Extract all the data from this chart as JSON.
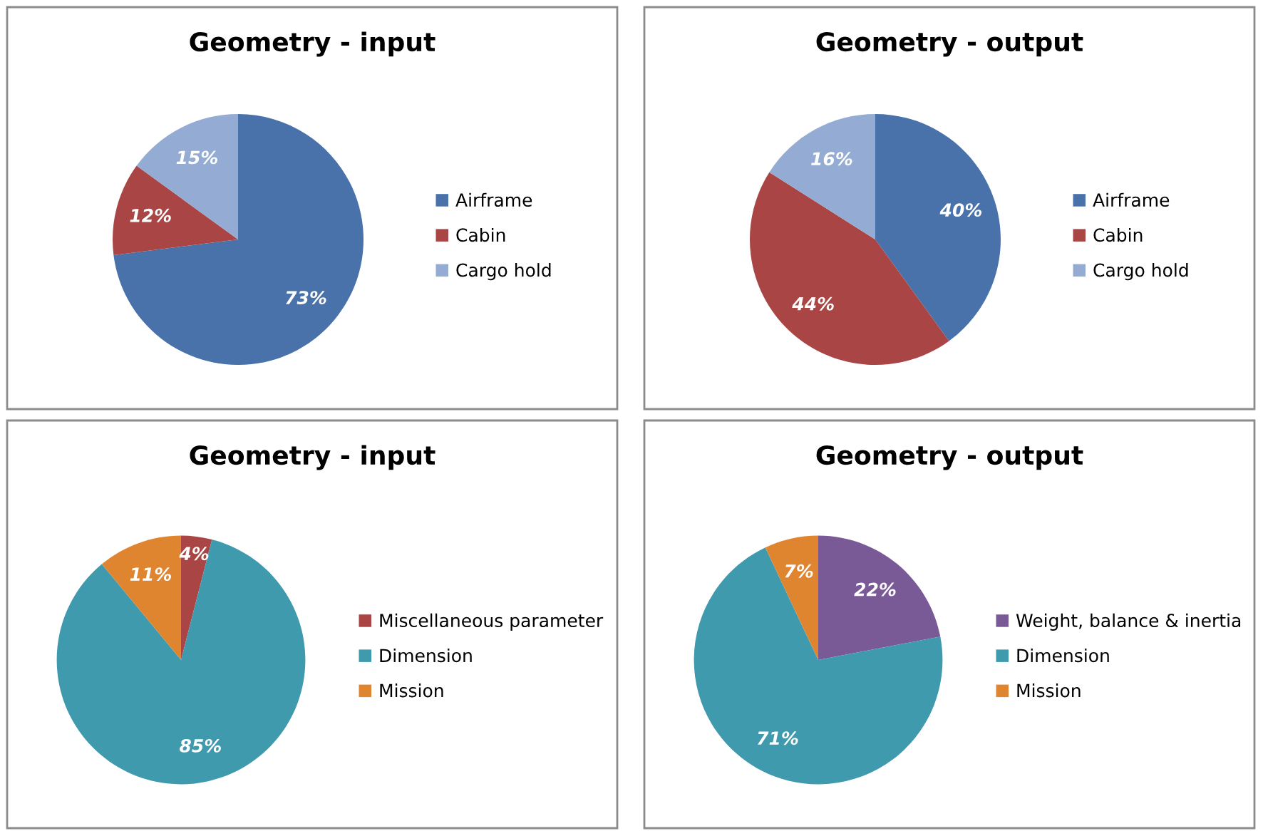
{
  "chart_data": [
    {
      "type": "pie",
      "title": "Geometry - input",
      "categories": [
        "Airframe",
        "Cabin",
        "Cargo hold"
      ],
      "values": [
        73,
        12,
        15
      ],
      "colors": [
        "#4a72aa",
        "#a94544",
        "#94abd3"
      ],
      "value_labels": [
        "73%",
        "12%",
        "15%"
      ],
      "legend": "right"
    },
    {
      "type": "pie",
      "title": "Geometry - output",
      "categories": [
        "Airframe",
        "Cabin",
        "Cargo hold"
      ],
      "values": [
        40,
        44,
        16
      ],
      "colors": [
        "#4a72aa",
        "#a94544",
        "#94abd3"
      ],
      "value_labels": [
        "40%",
        "44%",
        "16%"
      ],
      "legend": "right"
    },
    {
      "type": "pie",
      "title": "Geometry - input",
      "categories": [
        "Miscellaneous parameter",
        "Dimension",
        "Mission"
      ],
      "values": [
        4,
        85,
        11
      ],
      "colors": [
        "#a94544",
        "#3f9aae",
        "#df8530"
      ],
      "value_labels": [
        "4%",
        "85%",
        "11%"
      ],
      "legend": "right"
    },
    {
      "type": "pie",
      "title": "Geometry - output",
      "categories": [
        "Weight, balance & inertia",
        "Dimension",
        "Mission"
      ],
      "values": [
        22,
        71,
        7
      ],
      "colors": [
        "#7a5a96",
        "#3f9aae",
        "#df8530"
      ],
      "value_labels": [
        "22%",
        "71%",
        "7%"
      ],
      "legend": "right"
    }
  ]
}
